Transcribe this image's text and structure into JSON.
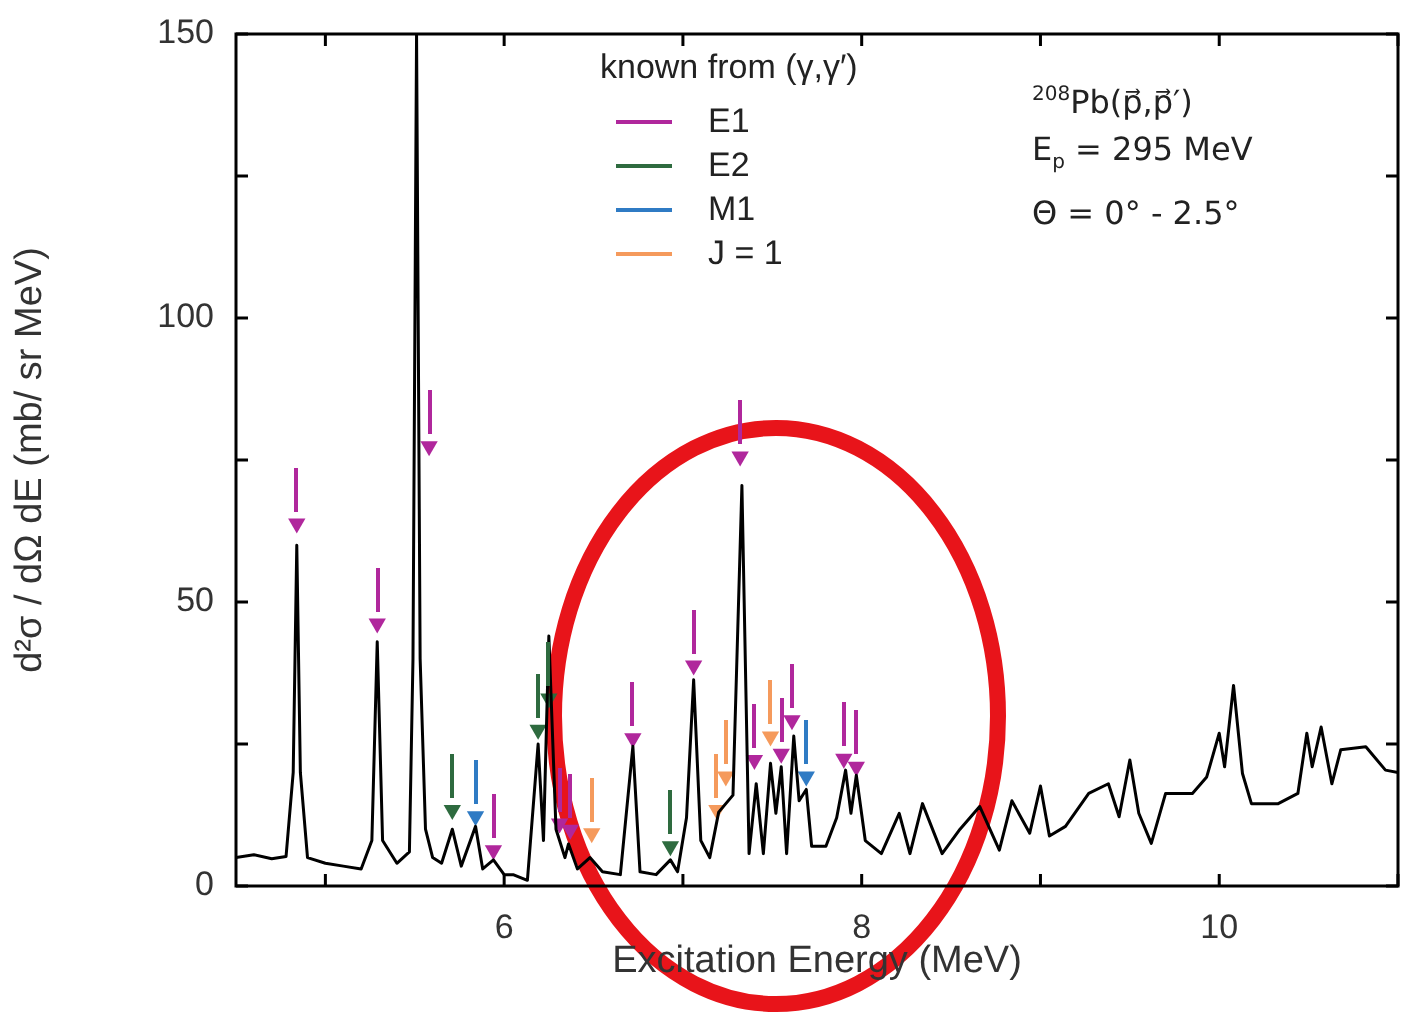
{
  "chart_data": {
    "type": "line",
    "xlabel": "Excitation Energy (MeV)",
    "ylabel": "d²σ / dΩ dE (mb/ sr MeV)",
    "legend_title": "known from (γ,γ′)",
    "legend": "top",
    "xlim": [
      4.5,
      11
    ],
    "xticks": [
      {
        "value": 5,
        "label": null
      },
      6,
      {
        "value": 7,
        "label": null
      },
      8,
      {
        "value": 9,
        "label": null
      },
      10,
      {
        "value": 11,
        "label": null
      }
    ],
    "ylim": [
      0,
      150
    ],
    "yticks": [
      0,
      {
        "value": 25,
        "label": null
      },
      50,
      {
        "value": 75,
        "label": null
      },
      100,
      {
        "value": 125,
        "label": null
      },
      150
    ],
    "annotations": [
      "$^{208}$Pb(p⃗,p⃗′)",
      "E$_{p}$ = 295 MeV",
      "Θ = 0° - 2.5°"
    ],
    "series": [
      {
        "color": "#000000",
        "x": [
          4.5,
          4.6,
          4.7,
          4.78,
          4.82,
          4.84,
          4.86,
          4.9,
          5.0,
          5.1,
          5.2,
          5.26,
          5.29,
          5.32,
          5.4,
          5.47,
          5.49,
          5.51,
          5.53,
          5.56,
          5.6,
          5.65,
          5.71,
          5.76,
          5.84,
          5.88,
          5.94,
          6.0,
          6.05,
          6.13,
          6.19,
          6.22,
          6.25,
          6.29,
          6.31,
          6.34,
          6.36,
          6.41,
          6.48,
          6.55,
          6.65,
          6.72,
          6.76,
          6.85,
          6.93,
          6.97,
          7.02,
          7.06,
          7.1,
          7.15,
          7.2,
          7.28,
          7.33,
          7.37,
          7.41,
          7.45,
          7.49,
          7.52,
          7.55,
          7.58,
          7.62,
          7.65,
          7.69,
          7.72,
          7.8,
          7.86,
          7.91,
          7.94,
          7.97,
          8.02,
          8.11,
          8.21,
          8.27,
          8.34,
          8.45,
          8.55,
          8.66,
          8.77,
          8.84,
          8.94,
          9.0,
          9.05,
          9.14,
          9.27,
          9.38,
          9.44,
          9.5,
          9.55,
          9.62,
          9.7,
          9.85,
          9.93,
          10.0,
          10.03,
          10.08,
          10.13,
          10.18,
          10.33,
          10.44,
          10.49,
          10.52,
          10.57,
          10.63,
          10.68,
          10.82,
          10.93,
          11.0
        ],
        "values": [
          5,
          5.5,
          4.8,
          5.2,
          20,
          60,
          20,
          5,
          4,
          3.5,
          3,
          8,
          43,
          8,
          4,
          6,
          40,
          150,
          40,
          10,
          5,
          4,
          10,
          3.5,
          10.5,
          3,
          4.6,
          2,
          2,
          1,
          25,
          8,
          44,
          10,
          8,
          5,
          7.4,
          3,
          5,
          2.5,
          2,
          24.6,
          2.5,
          2,
          4.6,
          2.5,
          12,
          36.3,
          8,
          5,
          13,
          16,
          70.5,
          5.7,
          18,
          5.7,
          21.6,
          12.8,
          21,
          5.7,
          26.4,
          15,
          17,
          7,
          7,
          12,
          20.4,
          12.8,
          19.5,
          8,
          5.7,
          12.8,
          5.7,
          14.5,
          5.7,
          10,
          14,
          6.3,
          15,
          9.3,
          17.6,
          8.8,
          10.5,
          16.3,
          18,
          12.2,
          22.2,
          12.8,
          7.5,
          16.3,
          16.3,
          19.2,
          26.9,
          21,
          35.3,
          19.8,
          14.5,
          14.5,
          16.3,
          26.9,
          21,
          28,
          18,
          24,
          24.5,
          20.4,
          20
        ]
      },
      {
        "type": "scatter",
        "marker": "triangle",
        "name": "E1",
        "color": "#b0279c",
        "x": [
          4.84,
          5.29,
          5.58,
          5.94,
          6.31,
          6.37,
          6.72,
          7.06,
          7.32,
          7.4,
          7.55,
          7.61,
          7.9,
          7.97
        ],
        "values": [
          63.8,
          46.2,
          77.4,
          6.3,
          11,
          9.9,
          26,
          38.8,
          75.6,
          22.2,
          23.3,
          29.2,
          22.4,
          21
        ]
      },
      {
        "type": "scatter",
        "marker": "triangle",
        "name": "E2",
        "color": "#2e6b3f",
        "x": [
          5.71,
          6.19,
          6.25,
          6.93
        ],
        "values": [
          13.4,
          27.5,
          33,
          7
        ]
      },
      {
        "type": "scatter",
        "marker": "triangle",
        "name": "M1",
        "color": "#2f7bc4",
        "x": [
          5.84,
          7.69
        ],
        "values": [
          12.3,
          19.3
        ]
      },
      {
        "type": "scatter",
        "marker": "triangle",
        "name": "J = 1",
        "color": "#f59a5c",
        "x": [
          6.49,
          7.19,
          7.24,
          7.49
        ],
        "values": [
          9.3,
          13.4,
          19.3,
          26.3
        ]
      }
    ]
  }
}
